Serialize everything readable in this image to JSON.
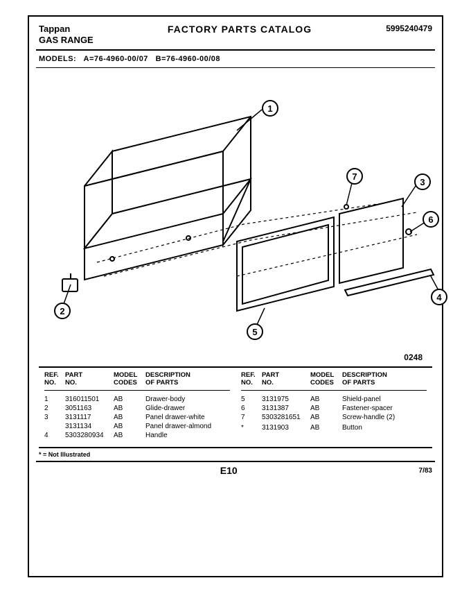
{
  "header": {
    "brand": "Tappan",
    "product": "GAS RANGE",
    "title": "FACTORY PARTS CATALOG",
    "doc_no": "5995240479"
  },
  "models": {
    "label": "MODELS:",
    "a": "A=76-4960-00/07",
    "b": "B=76-4960-00/08"
  },
  "diagram": {
    "code": "0248",
    "callouts": {
      "1": "1",
      "2": "2",
      "3": "3",
      "4": "4",
      "5": "5",
      "6": "6",
      "7": "7"
    }
  },
  "table": {
    "headers": {
      "ref": "REF.\nNO.",
      "part": "PART\nNO.",
      "model": "MODEL\nCODES",
      "desc": "DESCRIPTION\nOF PARTS"
    },
    "left_rows": [
      {
        "ref": "1",
        "part": "316011501",
        "codes": "AB",
        "desc": "Drawer-body"
      },
      {
        "ref": "2",
        "part": "3051163",
        "codes": "AB",
        "desc": "Glide-drawer"
      },
      {
        "ref": "3",
        "part": "3131117",
        "codes": "AB",
        "desc": "Panel drawer-white"
      },
      {
        "ref": "",
        "part": "3131134",
        "codes": "AB",
        "desc": "Panel drawer-almond"
      },
      {
        "ref": "4",
        "part": "5303280934",
        "codes": "AB",
        "desc": "Handle"
      }
    ],
    "right_rows": [
      {
        "ref": "5",
        "part": "3131975",
        "codes": "AB",
        "desc": "Shield-panel"
      },
      {
        "ref": "6",
        "part": "3131387",
        "codes": "AB",
        "desc": "Fastener-spacer"
      },
      {
        "ref": "7",
        "part": "5303281651",
        "codes": "AB",
        "desc": "Screw-handle (2)"
      },
      {
        "ref": "",
        "part": "",
        "codes": "",
        "desc": ""
      },
      {
        "ref": "*",
        "part": "3131903",
        "codes": "AB",
        "desc": "Button"
      }
    ]
  },
  "footer": {
    "note": "* = Not Illustrated",
    "page": "E10",
    "date": "7/83"
  },
  "colors": {
    "stroke": "#000000",
    "bg": "#ffffff"
  }
}
